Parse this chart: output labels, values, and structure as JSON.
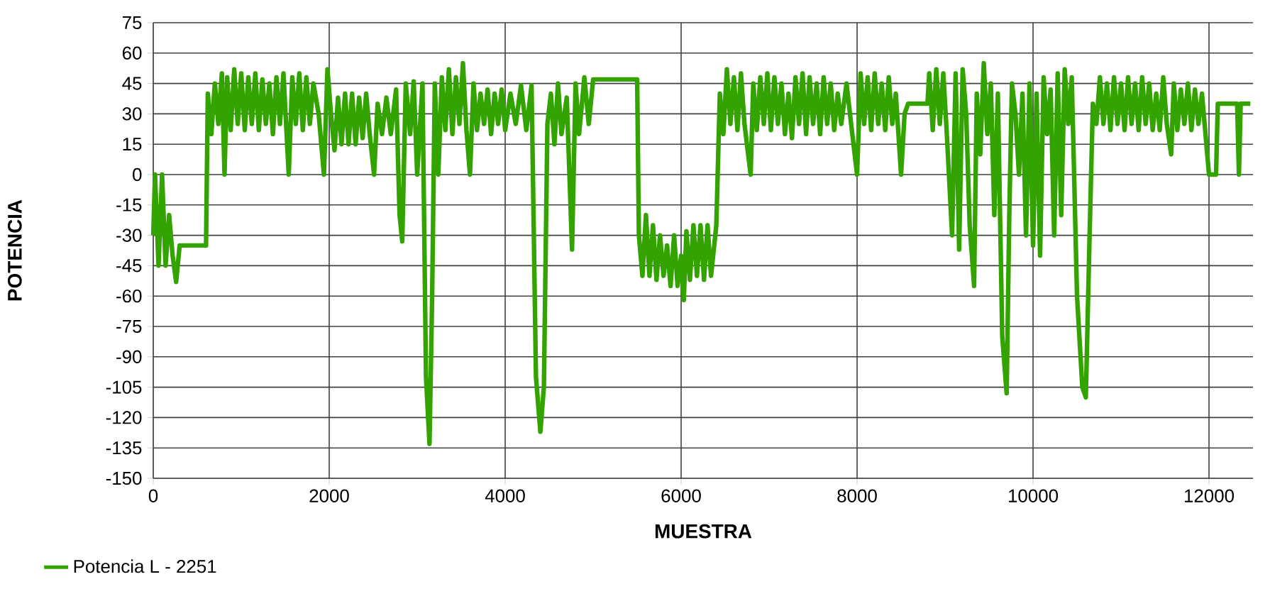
{
  "chart_data": {
    "type": "line",
    "xlabel": "MUESTRA",
    "ylabel": "POTENCIA",
    "xlim": [
      0,
      12500
    ],
    "ylim": [
      -150,
      75
    ],
    "xticks": [
      0,
      2000,
      4000,
      6000,
      8000,
      10000,
      12000
    ],
    "yticks": [
      -150,
      -135,
      -120,
      -105,
      -90,
      -75,
      -60,
      -45,
      -30,
      -15,
      0,
      15,
      30,
      45,
      60,
      75
    ],
    "grid": true,
    "legend": "bottom left",
    "marker": "none",
    "line_style": "solid",
    "series": [
      {
        "name": "Potencia L - 2251",
        "color": "#33a300",
        "x": [
          0,
          20,
          60,
          100,
          140,
          180,
          220,
          260,
          300,
          600,
          620,
          660,
          700,
          740,
          780,
          810,
          840,
          880,
          920,
          960,
          1000,
          1040,
          1080,
          1120,
          1160,
          1200,
          1240,
          1280,
          1320,
          1360,
          1400,
          1440,
          1480,
          1540,
          1580,
          1620,
          1660,
          1700,
          1740,
          1780,
          1820,
          1880,
          1940,
          1980,
          2020,
          2060,
          2100,
          2140,
          2180,
          2220,
          2260,
          2300,
          2340,
          2380,
          2420,
          2460,
          2510,
          2550,
          2600,
          2650,
          2700,
          2760,
          2800,
          2830,
          2870,
          2920,
          2960,
          3000,
          3060,
          3100,
          3140,
          3170,
          3200,
          3240,
          3280,
          3320,
          3360,
          3400,
          3440,
          3480,
          3520,
          3560,
          3600,
          3640,
          3680,
          3720,
          3760,
          3800,
          3840,
          3880,
          3920,
          3960,
          4000,
          4060,
          4120,
          4180,
          4240,
          4300,
          4350,
          4400,
          4440,
          4480,
          4520,
          4560,
          4600,
          4640,
          4700,
          4760,
          4800,
          4840,
          4900,
          4950,
          5000,
          5500,
          5520,
          5560,
          5600,
          5640,
          5680,
          5720,
          5760,
          5800,
          5840,
          5880,
          5920,
          5960,
          6000,
          6030,
          6060,
          6100,
          6140,
          6180,
          6220,
          6260,
          6300,
          6340,
          6400,
          6440,
          6480,
          6520,
          6560,
          6600,
          6640,
          6680,
          6720,
          6790,
          6820,
          6860,
          6900,
          6940,
          6980,
          7020,
          7060,
          7100,
          7140,
          7180,
          7220,
          7260,
          7300,
          7340,
          7380,
          7420,
          7460,
          7500,
          7540,
          7580,
          7620,
          7660,
          7700,
          7740,
          7780,
          7820,
          7880,
          7940,
          8000,
          8040,
          8080,
          8120,
          8160,
          8200,
          8240,
          8280,
          8320,
          8360,
          8400,
          8440,
          8500,
          8540,
          8580,
          8800,
          8820,
          8860,
          8900,
          8940,
          8980,
          9020,
          9080,
          9120,
          9160,
          9200,
          9240,
          9280,
          9330,
          9360,
          9400,
          9440,
          9480,
          9520,
          9560,
          9600,
          9650,
          9700,
          9730,
          9760,
          9800,
          9840,
          9880,
          9920,
          9960,
          10000,
          10040,
          10080,
          10120,
          10160,
          10200,
          10240,
          10280,
          10320,
          10360,
          10400,
          10440,
          10500,
          10560,
          10600,
          10640,
          10680,
          10720,
          10760,
          10800,
          10840,
          10880,
          10920,
          10960,
          11000,
          11040,
          11080,
          11120,
          11160,
          11200,
          11240,
          11280,
          11320,
          11360,
          11400,
          11440,
          11480,
          11520,
          11570,
          11600,
          11640,
          11680,
          11720,
          11760,
          11800,
          11840,
          11880,
          11920,
          12000,
          12080,
          12100,
          12320,
          12340,
          12360,
          12470
        ],
        "values": [
          -30,
          0,
          -45,
          0,
          -45,
          -20,
          -40,
          -53,
          -35,
          -35,
          40,
          20,
          45,
          25,
          50,
          0,
          48,
          22,
          52,
          25,
          50,
          22,
          48,
          25,
          50,
          22,
          47,
          25,
          45,
          20,
          48,
          25,
          50,
          0,
          48,
          25,
          50,
          22,
          48,
          25,
          45,
          30,
          0,
          52,
          30,
          12,
          38,
          15,
          40,
          15,
          40,
          15,
          38,
          18,
          40,
          20,
          0,
          35,
          20,
          38,
          20,
          42,
          -20,
          -33,
          45,
          20,
          46,
          0,
          45,
          -100,
          -133,
          -60,
          45,
          0,
          48,
          22,
          52,
          20,
          48,
          25,
          55,
          22,
          0,
          45,
          22,
          40,
          25,
          42,
          20,
          40,
          25,
          42,
          22,
          40,
          25,
          44,
          22,
          44,
          -100,
          -127,
          -105,
          25,
          40,
          15,
          45,
          20,
          38,
          -37,
          45,
          20,
          48,
          25,
          47,
          47,
          -30,
          -50,
          -20,
          -50,
          -25,
          -52,
          -30,
          -50,
          -35,
          -55,
          -30,
          -55,
          -40,
          -62,
          -28,
          -52,
          -25,
          -50,
          -25,
          -52,
          -25,
          -50,
          -25,
          40,
          20,
          52,
          25,
          48,
          22,
          50,
          25,
          0,
          45,
          22,
          48,
          25,
          50,
          22,
          48,
          25,
          45,
          20,
          40,
          18,
          48,
          25,
          50,
          20,
          48,
          25,
          45,
          20,
          48,
          25,
          45,
          22,
          40,
          25,
          45,
          22,
          0,
          50,
          25,
          48,
          22,
          50,
          25,
          45,
          22,
          48,
          25,
          40,
          0,
          30,
          35,
          35,
          50,
          22,
          52,
          25,
          50,
          20,
          -30,
          50,
          -37,
          52,
          30,
          -25,
          -55,
          40,
          10,
          55,
          20,
          45,
          -20,
          40,
          -80,
          -108,
          -20,
          45,
          30,
          0,
          40,
          -30,
          45,
          -35,
          40,
          -40,
          48,
          20,
          42,
          -30,
          50,
          -20,
          52,
          25,
          48,
          -60,
          -105,
          -110,
          -35,
          35,
          25,
          48,
          25,
          45,
          22,
          48,
          25,
          45,
          22,
          48,
          25,
          45,
          22,
          48,
          25,
          45,
          22,
          40,
          22,
          48,
          25,
          10,
          45,
          22,
          42,
          25,
          45,
          22,
          42,
          25,
          40,
          0,
          0,
          35,
          35,
          0,
          35,
          35
        ]
      }
    ]
  }
}
